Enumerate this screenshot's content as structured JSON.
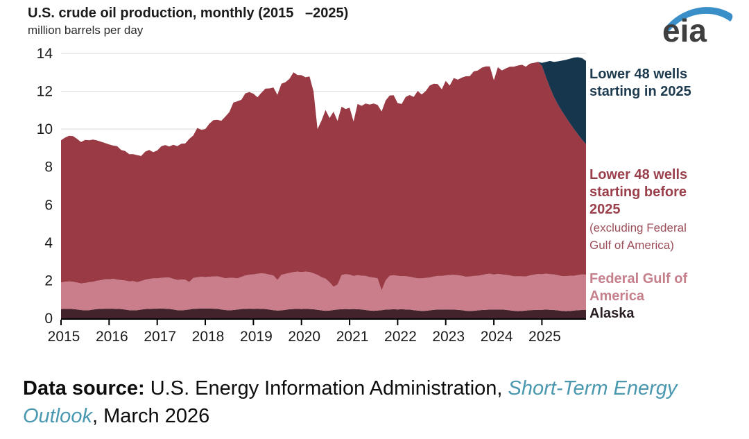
{
  "header": {
    "title": "U.S. crude oil production, monthly (2015   –2025)",
    "subtitle": "million barrels per day"
  },
  "logo": {
    "text": "eia",
    "swoosh_color": "#3a8fc8",
    "text_color": "#3f3f3f"
  },
  "legend": {
    "lower48_2025": {
      "label": "Lower 48 wells starting in 2025",
      "color": "#1d3a4f"
    },
    "lower48_before": {
      "label": "Lower 48 wells starting before 2025",
      "note": "(excluding Federal Gulf of America)",
      "color": "#9a3f4b"
    },
    "federal_gulf": {
      "label": "Federal Gulf of America",
      "color": "#c5808c"
    },
    "alaska": {
      "label": "Alaska",
      "color": "#2a1e25"
    }
  },
  "footer": {
    "label_bold": "Data source:",
    "text": " U.S. Energy Information Administration, ",
    "link_italic": "Short-Term Energy Outlook",
    "tail": ", March 2026",
    "link_color": "#4a98b0"
  },
  "chart_data": {
    "type": "area",
    "stacked": true,
    "title": "U.S. crude oil production, monthly (2015–2025)",
    "ylabel": "million barrels per day",
    "x_unit": "month",
    "x_start": "2015-01",
    "x_end": "2025-12",
    "month_count": 132,
    "y_max": 14,
    "y_ticks": [
      0,
      2,
      4,
      6,
      8,
      10,
      12,
      14
    ],
    "x_tick_years": [
      "2015",
      "2016",
      "2017",
      "2018",
      "2019",
      "2020",
      "2021",
      "2022",
      "2023",
      "2024",
      "2025"
    ],
    "grid": "horizontal",
    "grid_color": "#d9d9d9",
    "legend_position": "right",
    "series": [
      {
        "name": "Alaska",
        "color": "#43232b",
        "values": [
          0.49,
          0.5,
          0.5,
          0.49,
          0.47,
          0.44,
          0.42,
          0.43,
          0.46,
          0.49,
          0.5,
          0.51,
          0.51,
          0.51,
          0.5,
          0.49,
          0.46,
          0.43,
          0.42,
          0.43,
          0.46,
          0.49,
          0.5,
          0.51,
          0.51,
          0.52,
          0.51,
          0.5,
          0.47,
          0.43,
          0.42,
          0.44,
          0.47,
          0.5,
          0.51,
          0.52,
          0.52,
          0.52,
          0.51,
          0.5,
          0.47,
          0.44,
          0.42,
          0.44,
          0.46,
          0.49,
          0.5,
          0.51,
          0.5,
          0.51,
          0.5,
          0.49,
          0.46,
          0.43,
          0.41,
          0.42,
          0.45,
          0.48,
          0.49,
          0.5,
          0.49,
          0.5,
          0.49,
          0.48,
          0.45,
          0.42,
          0.4,
          0.41,
          0.44,
          0.47,
          0.48,
          0.49,
          0.48,
          0.49,
          0.48,
          0.47,
          0.44,
          0.41,
          0.4,
          0.41,
          0.43,
          0.46,
          0.47,
          0.48,
          0.47,
          0.48,
          0.47,
          0.46,
          0.43,
          0.41,
          0.39,
          0.4,
          0.42,
          0.45,
          0.46,
          0.47,
          0.47,
          0.47,
          0.46,
          0.45,
          0.43,
          0.4,
          0.39,
          0.4,
          0.42,
          0.44,
          0.45,
          0.46,
          0.46,
          0.47,
          0.46,
          0.45,
          0.42,
          0.4,
          0.38,
          0.39,
          0.41,
          0.43,
          0.44,
          0.45,
          0.45,
          0.46,
          0.45,
          0.44,
          0.42,
          0.39,
          0.38,
          0.39,
          0.41,
          0.43,
          0.44,
          0.44
        ]
      },
      {
        "name": "Federal Gulf of America",
        "color": "#ca7e8b",
        "values": [
          1.4,
          1.43,
          1.45,
          1.44,
          1.42,
          1.4,
          1.45,
          1.48,
          1.47,
          1.5,
          1.52,
          1.55,
          1.55,
          1.58,
          1.55,
          1.53,
          1.54,
          1.52,
          1.55,
          1.48,
          1.51,
          1.55,
          1.58,
          1.6,
          1.6,
          1.62,
          1.64,
          1.65,
          1.62,
          1.6,
          1.63,
          1.6,
          1.45,
          1.63,
          1.66,
          1.68,
          1.66,
          1.68,
          1.7,
          1.72,
          1.7,
          1.68,
          1.72,
          1.7,
          1.65,
          1.7,
          1.76,
          1.8,
          1.82,
          1.85,
          1.88,
          1.87,
          1.85,
          1.83,
          1.62,
          1.88,
          1.9,
          1.92,
          1.95,
          1.97,
          1.95,
          1.97,
          1.96,
          1.9,
          1.85,
          1.75,
          1.7,
          1.5,
          1.23,
          1.32,
          1.8,
          1.85,
          1.83,
          1.75,
          1.8,
          1.78,
          1.8,
          1.77,
          1.75,
          1.7,
          1.05,
          1.55,
          1.78,
          1.8,
          1.78,
          1.75,
          1.76,
          1.74,
          1.72,
          1.7,
          1.72,
          1.74,
          1.73,
          1.76,
          1.78,
          1.77,
          1.8,
          1.82,
          1.84,
          1.83,
          1.82,
          1.8,
          1.82,
          1.84,
          1.83,
          1.85,
          1.88,
          1.9,
          1.85,
          1.88,
          1.86,
          1.85,
          1.84,
          1.82,
          1.84,
          1.83,
          1.8,
          1.84,
          1.87,
          1.89,
          1.88,
          1.9,
          1.89,
          1.88,
          1.86,
          1.84,
          1.85,
          1.86,
          1.84,
          1.86,
          1.88,
          1.87
        ]
      },
      {
        "name": "Lower 48 wells starting before 2025 (excluding Federal Gulf of America)",
        "color": "#993a44",
        "values": [
          7.52,
          7.62,
          7.7,
          7.7,
          7.59,
          7.48,
          7.56,
          7.5,
          7.52,
          7.41,
          7.31,
          7.2,
          7.13,
          7.04,
          7.05,
          6.88,
          6.84,
          6.73,
          6.71,
          6.71,
          6.61,
          6.77,
          6.82,
          6.67,
          6.76,
          6.95,
          7.01,
          6.93,
          7.08,
          7.07,
          7.18,
          7.2,
          7.56,
          7.53,
          7.89,
          7.76,
          7.82,
          8.08,
          8.26,
          8.27,
          8.27,
          8.54,
          8.76,
          9.26,
          9.36,
          9.36,
          9.63,
          9.65,
          9.55,
          9.32,
          9.54,
          9.78,
          9.84,
          9.94,
          9.78,
          10.1,
          10.13,
          10.26,
          10.56,
          10.39,
          10.41,
          10.27,
          10.33,
          9.61,
          7.7,
          8.28,
          8.91,
          8.67,
          9.25,
          8.64,
          8.91,
          8.72,
          8.82,
          8.16,
          9.05,
          8.98,
          9.11,
          9.12,
          9.2,
          9.17,
          9.45,
          9.5,
          9.52,
          9.51,
          9.12,
          9.1,
          9.47,
          9.6,
          9.55,
          9.9,
          9.72,
          9.87,
          10.15,
          10.19,
          10.14,
          9.86,
          10.28,
          10.01,
          10.4,
          10.33,
          10.47,
          10.59,
          10.59,
          10.81,
          10.85,
          10.96,
          10.98,
          10.95,
          10.27,
          10.92,
          10.78,
          10.91,
          11.04,
          11.08,
          11.14,
          11.18,
          11.09,
          11.19,
          11.19,
          11.21,
          11.02,
          10.39,
          9.86,
          9.38,
          9.02,
          8.72,
          8.39,
          8.05,
          7.75,
          7.43,
          7.13,
          6.89
        ]
      },
      {
        "name": "Lower 48 wells starting in 2025",
        "color": "#16364e",
        "start_index": 120,
        "values": [
          0.15,
          0.8,
          1.4,
          1.85,
          2.28,
          2.67,
          3.04,
          3.42,
          3.78,
          4.08,
          4.3,
          4.4
        ]
      }
    ]
  }
}
